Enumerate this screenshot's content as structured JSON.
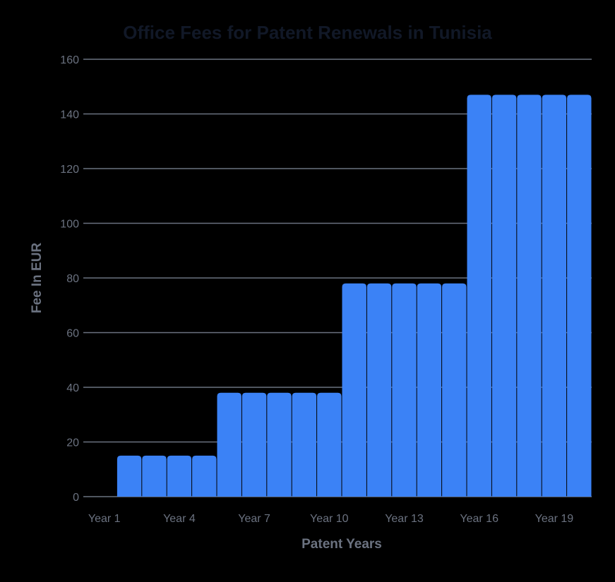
{
  "chart_data": {
    "type": "bar",
    "title": "Office Fees for Patent Renewals in Tunisia",
    "xlabel": "Patent Years",
    "ylabel": "Fee In EUR",
    "categories": [
      "Year 1",
      "Year 2",
      "Year 3",
      "Year 4",
      "Year 5",
      "Year 6",
      "Year 7",
      "Year 8",
      "Year 9",
      "Year 10",
      "Year 11",
      "Year 12",
      "Year 13",
      "Year 14",
      "Year 15",
      "Year 16",
      "Year 17",
      "Year 18",
      "Year 19",
      "Year 20"
    ],
    "values": [
      0,
      15,
      15,
      15,
      15,
      38,
      38,
      38,
      38,
      38,
      78,
      78,
      78,
      78,
      78,
      147,
      147,
      147,
      147,
      147
    ],
    "visible_x_tick_labels": [
      "Year 1",
      "Year 4",
      "Year 7",
      "Year 10",
      "Year 13",
      "Year 16",
      "Year 19"
    ],
    "y_ticks": [
      0,
      20,
      40,
      60,
      80,
      100,
      120,
      140,
      160
    ],
    "ylim": [
      0,
      160
    ],
    "grid": true,
    "legend": null,
    "colors": {
      "bar": "#3b82f6",
      "grid": "#6b7280",
      "text": "#6b7280",
      "title": "#111827",
      "background": "#000000"
    }
  }
}
